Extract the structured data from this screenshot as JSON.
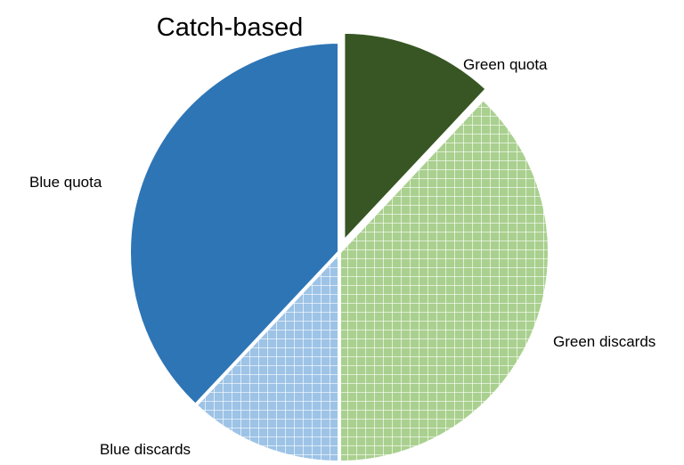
{
  "chart_data": {
    "type": "pie",
    "title": "Catch-based",
    "slices": [
      {
        "label": "Green quota",
        "value": 12,
        "color": "#375623",
        "pattern": "solid"
      },
      {
        "label": "Green discards",
        "value": 38,
        "color": "#a9d08e",
        "pattern": "grid"
      },
      {
        "label": "Blue discards",
        "value": 12,
        "color": "#9dc3e6",
        "pattern": "grid"
      },
      {
        "label": "Blue quota",
        "value": 38,
        "color": "#2e75b6",
        "pattern": "solid"
      }
    ],
    "legend": "none",
    "data_labels": "category names outside slices"
  }
}
